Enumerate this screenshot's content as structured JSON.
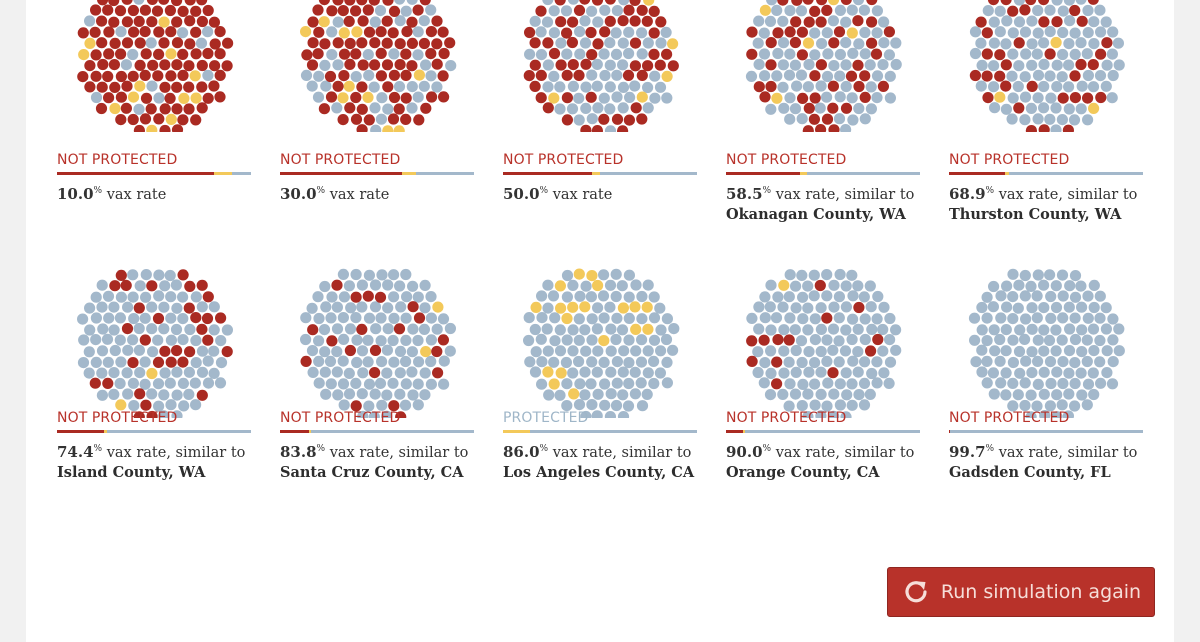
{
  "colors": {
    "unprotected": "#aa2a22",
    "vaccinated": "#a3b8cb",
    "protected_unvaccinated": "#f3c95a"
  },
  "button": {
    "label": "Run simulation again",
    "icon": "refresh-icon"
  },
  "chart_data": {
    "type": "dot-matrix",
    "panels": [
      {
        "status": "NOT PROTECTED",
        "protected": false,
        "rate": "10.0",
        "rate_suffix": "vax rate",
        "county": "",
        "bar": {
          "unprotected": 0.81,
          "protected_unvaccinated": 0.09,
          "vaccinated": 0.1
        }
      },
      {
        "status": "NOT PROTECTED",
        "protected": false,
        "rate": "30.0",
        "rate_suffix": "vax rate",
        "county": "",
        "bar": {
          "unprotected": 0.63,
          "protected_unvaccinated": 0.07,
          "vaccinated": 0.3
        }
      },
      {
        "status": "NOT PROTECTED",
        "protected": false,
        "rate": "50.0",
        "rate_suffix": "vax rate",
        "county": "",
        "bar": {
          "unprotected": 0.46,
          "protected_unvaccinated": 0.04,
          "vaccinated": 0.5
        }
      },
      {
        "status": "NOT PROTECTED",
        "protected": false,
        "rate": "58.5",
        "rate_suffix": "vax rate, similar to",
        "county": "Okanagan County, WA",
        "bar": {
          "unprotected": 0.38,
          "protected_unvaccinated": 0.035,
          "vaccinated": 0.585
        }
      },
      {
        "status": "NOT PROTECTED",
        "protected": false,
        "rate": "68.9",
        "rate_suffix": "vax rate, similar to",
        "county": "Thurston County, WA",
        "bar": {
          "unprotected": 0.29,
          "protected_unvaccinated": 0.021,
          "vaccinated": 0.689
        }
      },
      {
        "status": "NOT PROTECTED",
        "protected": false,
        "rate": "74.4",
        "rate_suffix": "vax rate, similar to",
        "county": "Island County, WA",
        "bar": {
          "unprotected": 0.24,
          "protected_unvaccinated": 0.016,
          "vaccinated": 0.744
        }
      },
      {
        "status": "NOT PROTECTED",
        "protected": false,
        "rate": "83.8",
        "rate_suffix": "vax rate, similar to",
        "county": "Santa Cruz County, CA",
        "bar": {
          "unprotected": 0.15,
          "protected_unvaccinated": 0.012,
          "vaccinated": 0.838
        }
      },
      {
        "status": "PROTECTED",
        "protected": true,
        "rate": "86.0",
        "rate_suffix": "vax rate, similar to",
        "county": "Los Angeles County, CA",
        "bar": {
          "unprotected": 0.0,
          "protected_unvaccinated": 0.14,
          "vaccinated": 0.86
        }
      },
      {
        "status": "NOT PROTECTED",
        "protected": false,
        "rate": "90.0",
        "rate_suffix": "vax rate, similar to",
        "county": "Orange County, CA",
        "bar": {
          "unprotected": 0.09,
          "protected_unvaccinated": 0.01,
          "vaccinated": 0.9
        }
      },
      {
        "status": "NOT PROTECTED",
        "protected": false,
        "rate": "99.7",
        "rate_suffix": "vax rate, similar to",
        "county": "Gadsden County, FL",
        "bar": {
          "unprotected": 0.003,
          "protected_unvaccinated": 0.0,
          "vaccinated": 0.997
        }
      }
    ]
  }
}
